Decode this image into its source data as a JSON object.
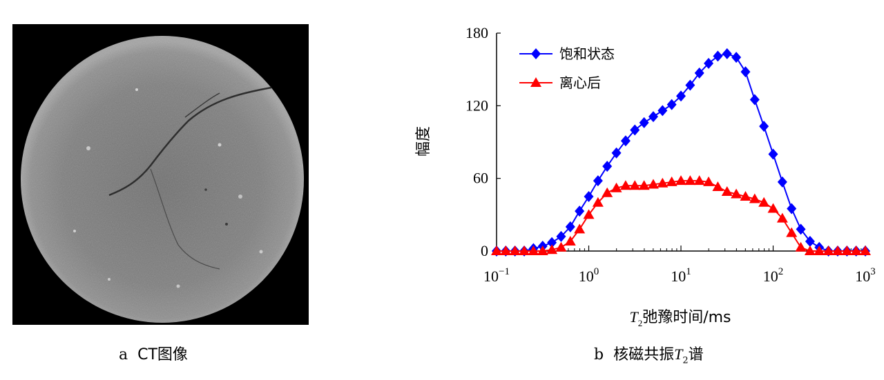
{
  "panel_a": {
    "caption_letter": "a",
    "caption_text": "CT图像"
  },
  "panel_b": {
    "caption_letter": "b",
    "caption_text": "核磁共振",
    "caption_T": "T",
    "caption_sub": "2",
    "caption_suffix": "谱"
  },
  "chart_data": {
    "type": "line",
    "ylabel": "幅度",
    "xlabel_T": "T",
    "xlabel_sub": "2",
    "xlabel_rest": "弛豫时间/ms",
    "x_scale": "log",
    "xlim": [
      0.1,
      1000
    ],
    "ylim": [
      0,
      180
    ],
    "y_ticks": [
      "0",
      "60",
      "120",
      "180"
    ],
    "x_ticks": [
      {
        "base": "10",
        "exp": "−1"
      },
      {
        "base": "10",
        "exp": "0"
      },
      {
        "base": "10",
        "exp": "1"
      },
      {
        "base": "10",
        "exp": "2"
      },
      {
        "base": "10",
        "exp": "3"
      }
    ],
    "grid": false,
    "legend_position": "top-left",
    "log_exponents": [
      -1.0,
      -0.9,
      -0.8,
      -0.7,
      -0.6,
      -0.5,
      -0.4,
      -0.3,
      -0.2,
      -0.1,
      0.0,
      0.1,
      0.2,
      0.3,
      0.4,
      0.5,
      0.6,
      0.7,
      0.8,
      0.9,
      1.0,
      1.1,
      1.2,
      1.3,
      1.4,
      1.5,
      1.6,
      1.7,
      1.8,
      1.9,
      2.0,
      2.1,
      2.2,
      2.3,
      2.4,
      2.5,
      2.6,
      2.7,
      2.8,
      2.9,
      3.0
    ],
    "series": [
      {
        "name": "饱和状态",
        "color": "#0000ff",
        "marker": "diamond",
        "values": [
          0,
          0,
          0,
          0,
          2,
          4,
          7,
          12,
          20,
          33,
          45,
          58,
          70,
          81,
          91,
          100,
          106,
          111,
          116,
          121,
          128,
          137,
          147,
          155,
          161,
          163,
          160,
          148,
          125,
          103,
          80,
          57,
          35,
          18,
          8,
          3,
          0,
          0,
          0,
          0,
          0
        ]
      },
      {
        "name": "离心后",
        "color": "#ff0000",
        "marker": "triangle",
        "values": [
          0,
          0,
          0,
          0,
          0,
          0,
          1,
          3,
          8,
          18,
          30,
          40,
          48,
          52,
          54,
          54,
          54,
          55,
          56,
          57,
          58,
          58,
          58,
          57,
          53,
          49,
          47,
          45,
          43,
          40,
          35,
          27,
          15,
          3,
          0,
          0,
          0,
          0,
          0,
          0,
          0
        ]
      }
    ]
  }
}
